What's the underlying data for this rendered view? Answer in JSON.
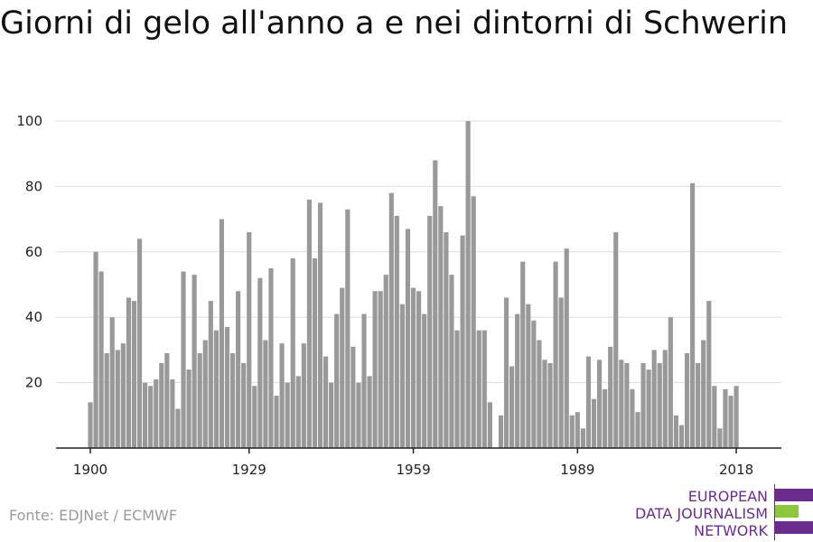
{
  "chart_data": {
    "type": "bar",
    "title": "Giorni di gelo all'anno a e nei dintorni di Schwerin",
    "xlabel": "",
    "ylabel": "",
    "x_ticks": [
      1900,
      1929,
      1959,
      1989,
      2018
    ],
    "y_ticks": [
      20,
      40,
      60,
      80,
      100
    ],
    "ylim": [
      0,
      100
    ],
    "xlim": [
      1900,
      2018
    ],
    "grid": true,
    "bar_color": "#999999",
    "years_start": 1900,
    "values": [
      14,
      60,
      54,
      29,
      40,
      30,
      32,
      46,
      45,
      64,
      20,
      19,
      21,
      26,
      29,
      21,
      12,
      54,
      24,
      53,
      29,
      33,
      45,
      36,
      70,
      37,
      29,
      48,
      26,
      66,
      19,
      52,
      33,
      55,
      16,
      32,
      20,
      58,
      22,
      32,
      76,
      58,
      75,
      28,
      20,
      41,
      49,
      73,
      31,
      20,
      41,
      22,
      48,
      48,
      53,
      78,
      71,
      44,
      67,
      49,
      48,
      41,
      71,
      88,
      74,
      66,
      53,
      36,
      65,
      100,
      77,
      36,
      36,
      14,
      0,
      10,
      46,
      25,
      41,
      57,
      44,
      39,
      33,
      27,
      26,
      57,
      46,
      61,
      10,
      11,
      6,
      28,
      15,
      27,
      18,
      31,
      66,
      27,
      26,
      18,
      11,
      26,
      24,
      30,
      26,
      30,
      40,
      10,
      7,
      29,
      81,
      26,
      33,
      45,
      19,
      6,
      18,
      16,
      19
    ]
  },
  "source": "Fonte: EDJNet / ECMWF",
  "logo": {
    "line1": "EUROPEAN",
    "line2": "DATA JOURNALISM",
    "line3": "NETWORK",
    "color_purple": "#6b2c8c",
    "color_green": "#8dc63f"
  }
}
